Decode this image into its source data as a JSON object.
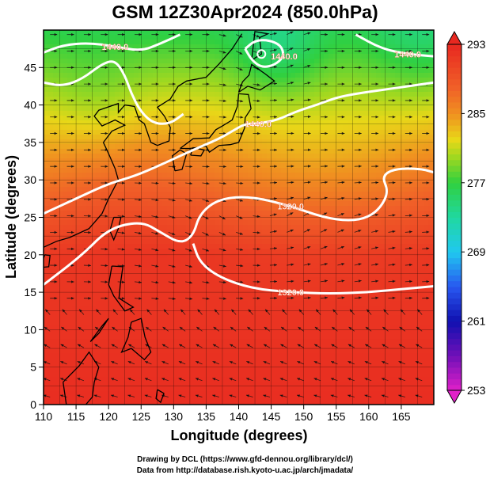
{
  "chart_data": {
    "type": "heatmap",
    "title": "GSM 12Z30Apr2024 (850.0hPa)",
    "xlabel": "Longitude (degrees)",
    "ylabel": "Latitude (degrees)",
    "xlim": [
      110,
      170
    ],
    "ylim": [
      0,
      50
    ],
    "x_ticks": [
      "110",
      "115",
      "120",
      "125",
      "130",
      "135",
      "140",
      "145",
      "150",
      "155",
      "160",
      "165"
    ],
    "y_ticks": [
      "0",
      "5",
      "10",
      "15",
      "20",
      "25",
      "30",
      "35",
      "40",
      "45"
    ],
    "grid": true,
    "colorbar": {
      "min": 253,
      "max": 293,
      "ticks": [
        "253",
        "261",
        "269",
        "277",
        "285",
        "293"
      ],
      "colors": [
        "#e020c8",
        "#1010b0",
        "#2858f0",
        "#20c8f0",
        "#30d870",
        "#70d820",
        "#e8d818",
        "#f09020",
        "#f05028",
        "#e82820"
      ]
    },
    "contours": [
      {
        "label": "1320.0",
        "points": [
          [
            110,
            16
          ],
          [
            116,
            20
          ],
          [
            120,
            23.5
          ],
          [
            125,
            24.5
          ],
          [
            128,
            23
          ],
          [
            131,
            21.5
          ],
          [
            133,
            22.5
          ],
          [
            134,
            25.5
          ],
          [
            137,
            27.5
          ],
          [
            142,
            27.8
          ],
          [
            148,
            26.5
          ],
          [
            153,
            25
          ],
          [
            157,
            24.5
          ],
          [
            160,
            25
          ],
          [
            162,
            26.5
          ],
          [
            163,
            28.5
          ],
          [
            162,
            30.5
          ],
          [
            164,
            31.5
          ],
          [
            168,
            31.5
          ],
          [
            170,
            31
          ]
        ]
      },
      {
        "label": "1320.0",
        "points": [
          [
            133,
            21.5
          ],
          [
            134,
            19
          ],
          [
            137,
            17
          ],
          [
            142,
            15.5
          ],
          [
            148,
            15
          ],
          [
            154,
            14.8
          ],
          [
            160,
            15
          ],
          [
            166,
            15.5
          ],
          [
            170,
            15.8
          ]
        ]
      },
      {
        "label": "1440.0",
        "points": [
          [
            110,
            25.5
          ],
          [
            115,
            27.5
          ],
          [
            120,
            29.5
          ],
          [
            124,
            30.5
          ],
          [
            128,
            32
          ],
          [
            133,
            34
          ],
          [
            137,
            35.5
          ],
          [
            139,
            36.5
          ],
          [
            141,
            37.5
          ],
          [
            143,
            37.5
          ],
          [
            146,
            38
          ],
          [
            149,
            39.2
          ],
          [
            152,
            40
          ],
          [
            155,
            41
          ],
          [
            158,
            41.5
          ],
          [
            162,
            42
          ],
          [
            166,
            42.5
          ],
          [
            170,
            43
          ]
        ]
      },
      {
        "label": "1440.0",
        "points": [
          [
            110,
            47
          ],
          [
            113,
            48
          ],
          [
            117,
            48.3
          ],
          [
            121,
            47.8
          ],
          [
            125,
            47.2
          ],
          [
            128,
            48.2
          ],
          [
            131,
            49.4
          ]
        ]
      },
      {
        "label": "1440.0",
        "points": [
          [
            141,
            47.5
          ],
          [
            142,
            46
          ],
          [
            143.5,
            45
          ],
          [
            145.5,
            45.3
          ],
          [
            147,
            46.5
          ],
          [
            146.5,
            48
          ],
          [
            144.5,
            48.7
          ],
          [
            142.5,
            48.6
          ],
          [
            141,
            47.5
          ]
        ]
      },
      {
        "label": "1440.0",
        "points": [
          [
            158,
            49.4
          ],
          [
            162,
            47.5
          ],
          [
            166,
            46.8
          ],
          [
            170,
            46.5
          ]
        ]
      },
      {
        "label": "",
        "points": [
          [
            110,
            43
          ],
          [
            113,
            42.5
          ],
          [
            116,
            43.5
          ],
          [
            119,
            45.5
          ],
          [
            121,
            46
          ],
          [
            122.5,
            44
          ],
          [
            123.5,
            41.5
          ],
          [
            125,
            39
          ],
          [
            127,
            37.5
          ],
          [
            129.5,
            37.5
          ],
          [
            131.5,
            38.8
          ]
        ]
      }
    ],
    "lows": [
      {
        "lon": 143.5,
        "lat": 46.8
      }
    ]
  },
  "footer": {
    "credit_line1": "Drawing by DCL (https://www.gfd-dennou.org/library/dcl/)",
    "credit_line2": "Data from http://database.rish.kyoto-u.ac.jp/arch/jmadata/"
  }
}
